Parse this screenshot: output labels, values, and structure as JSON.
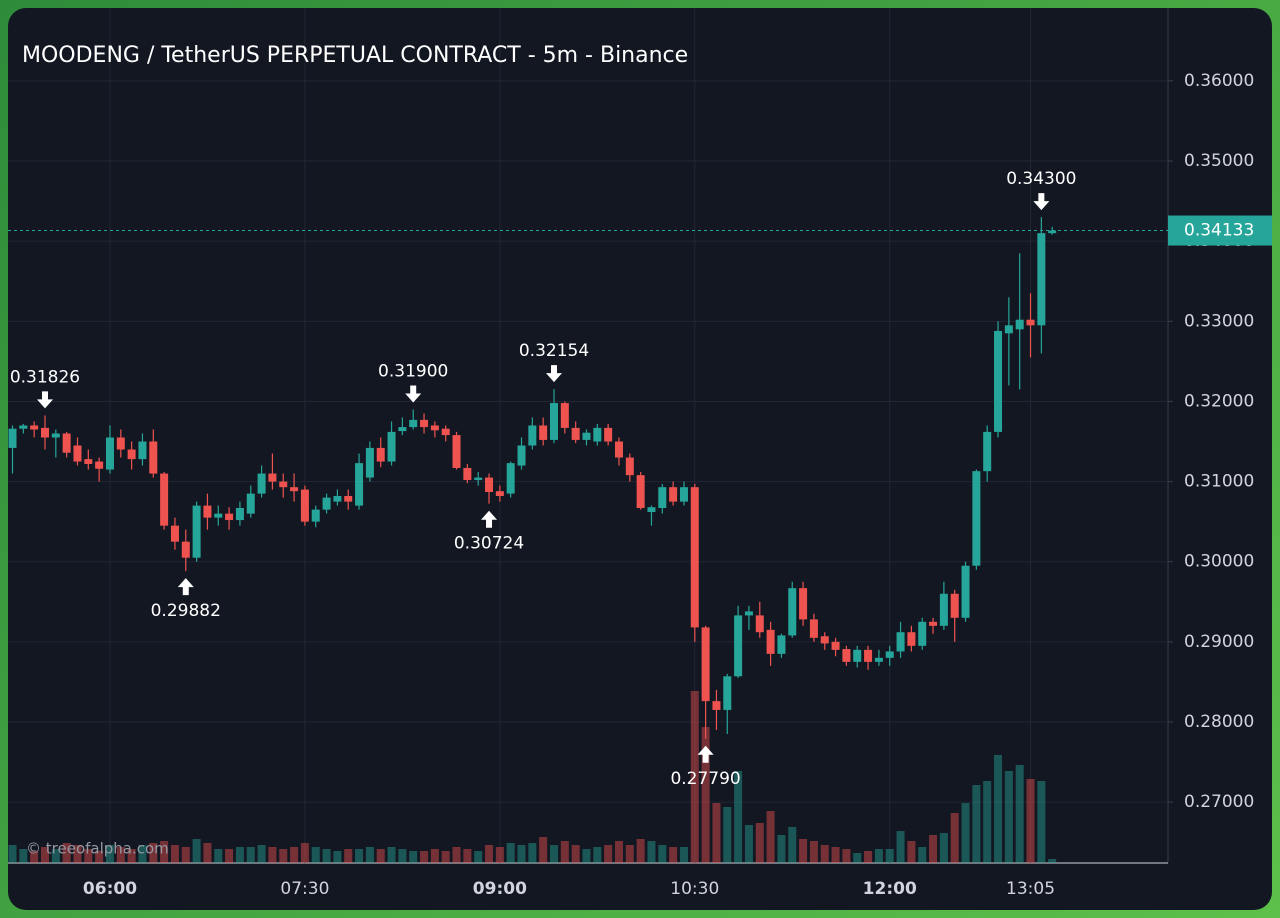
{
  "chart_data": {
    "type": "candlestick",
    "title": "MOODENG / TetherUS PERPETUAL CONTRACT - 5m - Binance",
    "watermark": "© treeofalpha.com",
    "categories": [
      null,
      null,
      null,
      null,
      null,
      null,
      null,
      null,
      null,
      "06:00",
      null,
      null,
      null,
      null,
      null,
      null,
      null,
      null,
      null,
      null,
      null,
      null,
      null,
      null,
      null,
      null,
      null,
      "07:30",
      null,
      null,
      null,
      null,
      null,
      null,
      null,
      null,
      null,
      null,
      null,
      null,
      null,
      null,
      null,
      null,
      null,
      "09:00",
      null,
      null,
      null,
      null,
      null,
      null,
      null,
      null,
      null,
      null,
      null,
      null,
      null,
      null,
      null,
      null,
      null,
      "10:30",
      null,
      null,
      null,
      null,
      null,
      null,
      null,
      null,
      null,
      null,
      null,
      null,
      null,
      null,
      null,
      null,
      null,
      "12:00",
      null,
      null,
      null,
      null,
      null,
      null,
      null,
      null,
      null,
      null,
      null,
      null,
      "13:05",
      null,
      null
    ],
    "open": [
      0.3142,
      0.3166,
      0.317,
      0.3167,
      0.3155,
      0.316,
      0.3145,
      0.3128,
      0.3125,
      0.3115,
      0.3155,
      0.314,
      0.3128,
      0.315,
      0.311,
      0.3045,
      0.3025,
      0.3005,
      0.307,
      0.3055,
      0.306,
      0.3052,
      0.306,
      0.3085,
      0.311,
      0.31,
      0.3093,
      0.309,
      0.305,
      0.3065,
      0.3075,
      0.3082,
      0.307,
      0.3105,
      0.3142,
      0.3125,
      0.3163,
      0.3168,
      0.3177,
      0.317,
      0.3166,
      0.3158,
      0.3117,
      0.3102,
      0.3105,
      0.3088,
      0.3085,
      0.312,
      0.3145,
      0.317,
      0.3152,
      0.3198,
      0.3167,
      0.3152,
      0.315,
      0.3167,
      0.315,
      0.313,
      0.3108,
      0.3062,
      0.3067,
      0.3093,
      0.3075,
      0.3093,
      0.2918,
      0.2826,
      0.2815,
      0.2857,
      0.2933,
      0.2933,
      0.2915,
      0.2885,
      0.2908,
      0.2967,
      0.2928,
      0.2907,
      0.29,
      0.2891,
      0.2875,
      0.289,
      0.2875,
      0.288,
      0.2888,
      0.2912,
      0.2895,
      0.2925,
      0.292,
      0.296,
      0.293,
      0.2995,
      0.3113,
      0.3162,
      0.3285,
      0.329,
      0.3302,
      0.3295,
      0.341
    ],
    "high": [
      0.317,
      0.3172,
      0.3175,
      0.31826,
      0.3165,
      0.3162,
      0.3155,
      0.314,
      0.313,
      0.317,
      0.3165,
      0.315,
      0.316,
      0.3165,
      0.3112,
      0.3055,
      0.304,
      0.3075,
      0.3085,
      0.307,
      0.3068,
      0.3075,
      0.3095,
      0.312,
      0.3135,
      0.311,
      0.311,
      0.3095,
      0.307,
      0.3085,
      0.309,
      0.309,
      0.3135,
      0.315,
      0.3155,
      0.3175,
      0.318,
      0.319,
      0.3185,
      0.3175,
      0.317,
      0.3162,
      0.3122,
      0.3112,
      0.311,
      0.3095,
      0.3125,
      0.3155,
      0.318,
      0.318,
      0.32154,
      0.32,
      0.3175,
      0.3165,
      0.3172,
      0.3172,
      0.3155,
      0.3135,
      0.3112,
      0.307,
      0.3097,
      0.31,
      0.31,
      0.3097,
      0.292,
      0.284,
      0.286,
      0.2945,
      0.2945,
      0.295,
      0.2925,
      0.291,
      0.2975,
      0.2975,
      0.2935,
      0.2912,
      0.2905,
      0.2895,
      0.2895,
      0.2895,
      0.289,
      0.2895,
      0.2925,
      0.292,
      0.293,
      0.293,
      0.2975,
      0.2965,
      0.3,
      0.3115,
      0.317,
      0.33,
      0.333,
      0.3385,
      0.3335,
      0.343,
      0.3418
    ],
    "low": [
      0.311,
      0.316,
      0.3155,
      0.314,
      0.313,
      0.313,
      0.312,
      0.3115,
      0.31,
      0.311,
      0.313,
      0.3115,
      0.312,
      0.3105,
      0.304,
      0.3015,
      0.29882,
      0.3,
      0.304,
      0.3045,
      0.304,
      0.3045,
      0.3055,
      0.308,
      0.309,
      0.308,
      0.3075,
      0.3045,
      0.3043,
      0.306,
      0.307,
      0.3065,
      0.3065,
      0.31,
      0.3118,
      0.312,
      0.3158,
      0.3165,
      0.316,
      0.3155,
      0.315,
      0.3115,
      0.3098,
      0.3095,
      0.30724,
      0.3075,
      0.308,
      0.3115,
      0.314,
      0.3145,
      0.3148,
      0.316,
      0.3148,
      0.3145,
      0.3145,
      0.3145,
      0.312,
      0.31,
      0.3065,
      0.3045,
      0.306,
      0.307,
      0.307,
      0.29,
      0.2779,
      0.279,
      0.2785,
      0.2855,
      0.2915,
      0.2905,
      0.287,
      0.288,
      0.2905,
      0.292,
      0.29,
      0.289,
      0.2882,
      0.287,
      0.2868,
      0.2865,
      0.287,
      0.287,
      0.288,
      0.2888,
      0.289,
      0.291,
      0.2915,
      0.29,
      0.2925,
      0.299,
      0.31,
      0.3155,
      0.322,
      0.3215,
      0.3255,
      0.326,
      0.3408
    ],
    "close": [
      0.3166,
      0.317,
      0.3165,
      0.3155,
      0.316,
      0.3136,
      0.3125,
      0.3122,
      0.3116,
      0.3155,
      0.314,
      0.3128,
      0.315,
      0.311,
      0.3045,
      0.3025,
      0.3005,
      0.307,
      0.3055,
      0.306,
      0.3052,
      0.3067,
      0.3085,
      0.311,
      0.31,
      0.3093,
      0.3088,
      0.305,
      0.3065,
      0.308,
      0.3082,
      0.3075,
      0.3123,
      0.3142,
      0.3125,
      0.3162,
      0.3168,
      0.3177,
      0.3168,
      0.3164,
      0.3158,
      0.3117,
      0.3102,
      0.3105,
      0.3087,
      0.3082,
      0.3123,
      0.3145,
      0.317,
      0.3152,
      0.3198,
      0.3167,
      0.3152,
      0.3161,
      0.3167,
      0.315,
      0.313,
      0.3108,
      0.3067,
      0.3068,
      0.3093,
      0.3075,
      0.3093,
      0.2918,
      0.2826,
      0.2815,
      0.2857,
      0.2933,
      0.2938,
      0.2912,
      0.2885,
      0.2908,
      0.2967,
      0.2928,
      0.2905,
      0.2898,
      0.289,
      0.2875,
      0.289,
      0.2875,
      0.288,
      0.2888,
      0.2912,
      0.2895,
      0.2925,
      0.292,
      0.296,
      0.293,
      0.2995,
      0.3113,
      0.3162,
      0.3288,
      0.3295,
      0.3302,
      0.3295,
      0.341,
      0.34133
    ],
    "volume": [
      18,
      14,
      12,
      16,
      14,
      20,
      18,
      14,
      12,
      18,
      16,
      14,
      18,
      20,
      22,
      18,
      16,
      24,
      20,
      14,
      14,
      16,
      16,
      18,
      16,
      14,
      16,
      20,
      16,
      14,
      12,
      14,
      14,
      16,
      14,
      16,
      14,
      12,
      12,
      14,
      12,
      16,
      14,
      12,
      18,
      16,
      20,
      18,
      20,
      26,
      18,
      22,
      18,
      14,
      16,
      18,
      22,
      18,
      24,
      22,
      18,
      16,
      16,
      172,
      136,
      60,
      56,
      92,
      38,
      40,
      52,
      28,
      36,
      24,
      22,
      18,
      16,
      14,
      10,
      12,
      14,
      14,
      32,
      22,
      16,
      28,
      30,
      50,
      60,
      78,
      82,
      108,
      92,
      98,
      84,
      82,
      4
    ],
    "up_color": "#26a69a",
    "down_color": "#ef5350",
    "ylim": [
      0.2624,
      0.3691
    ],
    "yticks": [
      {
        "value": 0.27,
        "label": "0.27000"
      },
      {
        "value": 0.28,
        "label": "0.28000"
      },
      {
        "value": 0.29,
        "label": "0.29000"
      },
      {
        "value": 0.3,
        "label": "0.30000"
      },
      {
        "value": 0.31,
        "label": "0.31000"
      },
      {
        "value": 0.32,
        "label": "0.32000"
      },
      {
        "value": 0.33,
        "label": "0.33000"
      },
      {
        "value": 0.34,
        "label": "0.34000"
      },
      {
        "value": 0.35,
        "label": "0.35000"
      },
      {
        "value": 0.36,
        "label": "0.36000"
      }
    ],
    "grid": true,
    "last_price": {
      "value": 0.34133,
      "label": "0.34133"
    },
    "annotations": [
      {
        "kind": "high",
        "value": 0.31826,
        "label": "0.31826"
      },
      {
        "kind": "low",
        "value": 0.29882,
        "label": "0.29882"
      },
      {
        "kind": "high",
        "value": 0.319,
        "label": "0.31900"
      },
      {
        "kind": "low",
        "value": 0.30724,
        "label": "0.30724"
      },
      {
        "kind": "high",
        "value": 0.32154,
        "label": "0.32154"
      },
      {
        "kind": "low",
        "value": 0.2779,
        "label": "0.27790"
      },
      {
        "kind": "high",
        "value": 0.343,
        "label": "0.34300"
      }
    ]
  }
}
